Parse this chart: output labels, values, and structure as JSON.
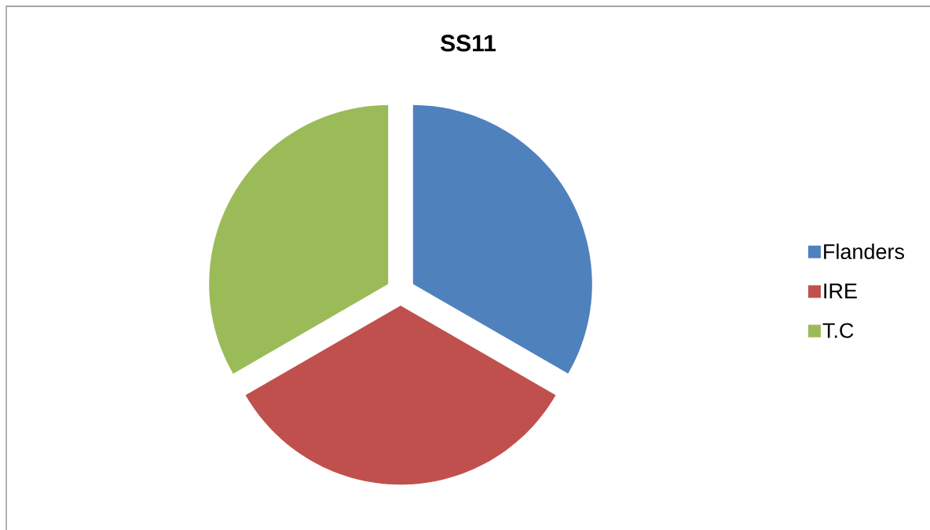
{
  "chart_data": {
    "type": "pie",
    "title": "SS11",
    "categories": [
      "Flanders",
      "IRE",
      "T.C"
    ],
    "values": [
      33.33,
      33.33,
      33.34
    ],
    "colors": [
      "#4f81bd",
      "#c0504d",
      "#9bbb59"
    ],
    "legend": "right"
  }
}
